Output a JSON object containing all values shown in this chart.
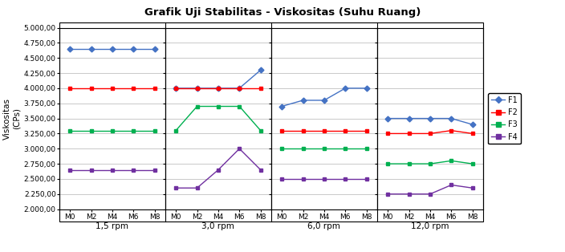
{
  "title": "Grafik Uji Stabilitas - Viskositas (Suhu Ruang)",
  "ylabel": "Viskositas\n(CPs)",
  "xlabel_groups": [
    "1,5 rpm",
    "3,0 rpm",
    "6,0 rpm",
    "12,0 rpm"
  ],
  "x_tick_labels": [
    "M0",
    "M2",
    "M4",
    "M6",
    "M8"
  ],
  "ylim": [
    2000,
    5000
  ],
  "yticks": [
    2000,
    2250,
    2500,
    2750,
    3000,
    3250,
    3500,
    3750,
    4000,
    4250,
    4500,
    4750,
    5000
  ],
  "series": {
    "F1": {
      "color": "#4472C4",
      "marker": "D",
      "data": {
        "1.5rpm": [
          4650,
          4650,
          4650,
          4650,
          4650
        ],
        "3.0rpm": [
          4000,
          4000,
          4000,
          4000,
          4300
        ],
        "6.0rpm": [
          3700,
          3800,
          3800,
          4000,
          4000
        ],
        "12.0rpm": [
          3500,
          3500,
          3500,
          3500,
          3400
        ]
      }
    },
    "F2": {
      "color": "#FF0000",
      "marker": "s",
      "data": {
        "1.5rpm": [
          4000,
          4000,
          4000,
          4000,
          4000
        ],
        "3.0rpm": [
          4000,
          4000,
          4000,
          4000,
          4000
        ],
        "6.0rpm": [
          3300,
          3300,
          3300,
          3300,
          3300
        ],
        "12.0rpm": [
          3250,
          3250,
          3250,
          3300,
          3250
        ]
      }
    },
    "F3": {
      "color": "#00B050",
      "marker": "s",
      "data": {
        "1.5rpm": [
          3300,
          3300,
          3300,
          3300,
          3300
        ],
        "3.0rpm": [
          3300,
          3700,
          3700,
          3700,
          3300
        ],
        "6.0rpm": [
          3000,
          3000,
          3000,
          3000,
          3000
        ],
        "12.0rpm": [
          2750,
          2750,
          2750,
          2800,
          2750
        ]
      }
    },
    "F4": {
      "color": "#7030A0",
      "marker": "s",
      "data": {
        "1.5rpm": [
          2650,
          2650,
          2650,
          2650,
          2650
        ],
        "3.0rpm": [
          2350,
          2350,
          2650,
          3000,
          2650
        ],
        "6.0rpm": [
          2500,
          2500,
          2500,
          2500,
          2500
        ],
        "12.0rpm": [
          2250,
          2250,
          2250,
          2400,
          2350
        ]
      }
    }
  },
  "legend_order": [
    "F1",
    "F2",
    "F3",
    "F4"
  ],
  "background_color": "#FFFFFF",
  "grid_color": "#C0C0C0"
}
